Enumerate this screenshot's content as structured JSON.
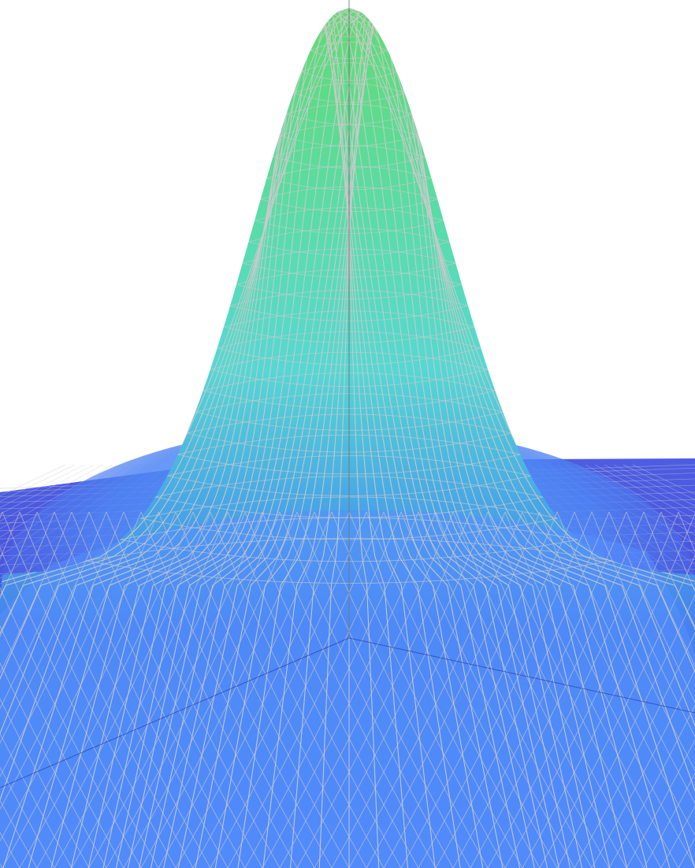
{
  "scene": {
    "kind": "3d-surface-plot",
    "function": "gaussian",
    "colors": {
      "background": "#ffffff",
      "plane_near": "#3d49d8",
      "plane_far": "#4b5be2",
      "surface_low": "#4a78f0",
      "surface_mid": "#52d6d8",
      "surface_high": "#5fdc78",
      "mesh_line": "#c8c8c8",
      "axis_line": "#555555"
    },
    "axes_visible": true,
    "mesh_visible": true
  }
}
